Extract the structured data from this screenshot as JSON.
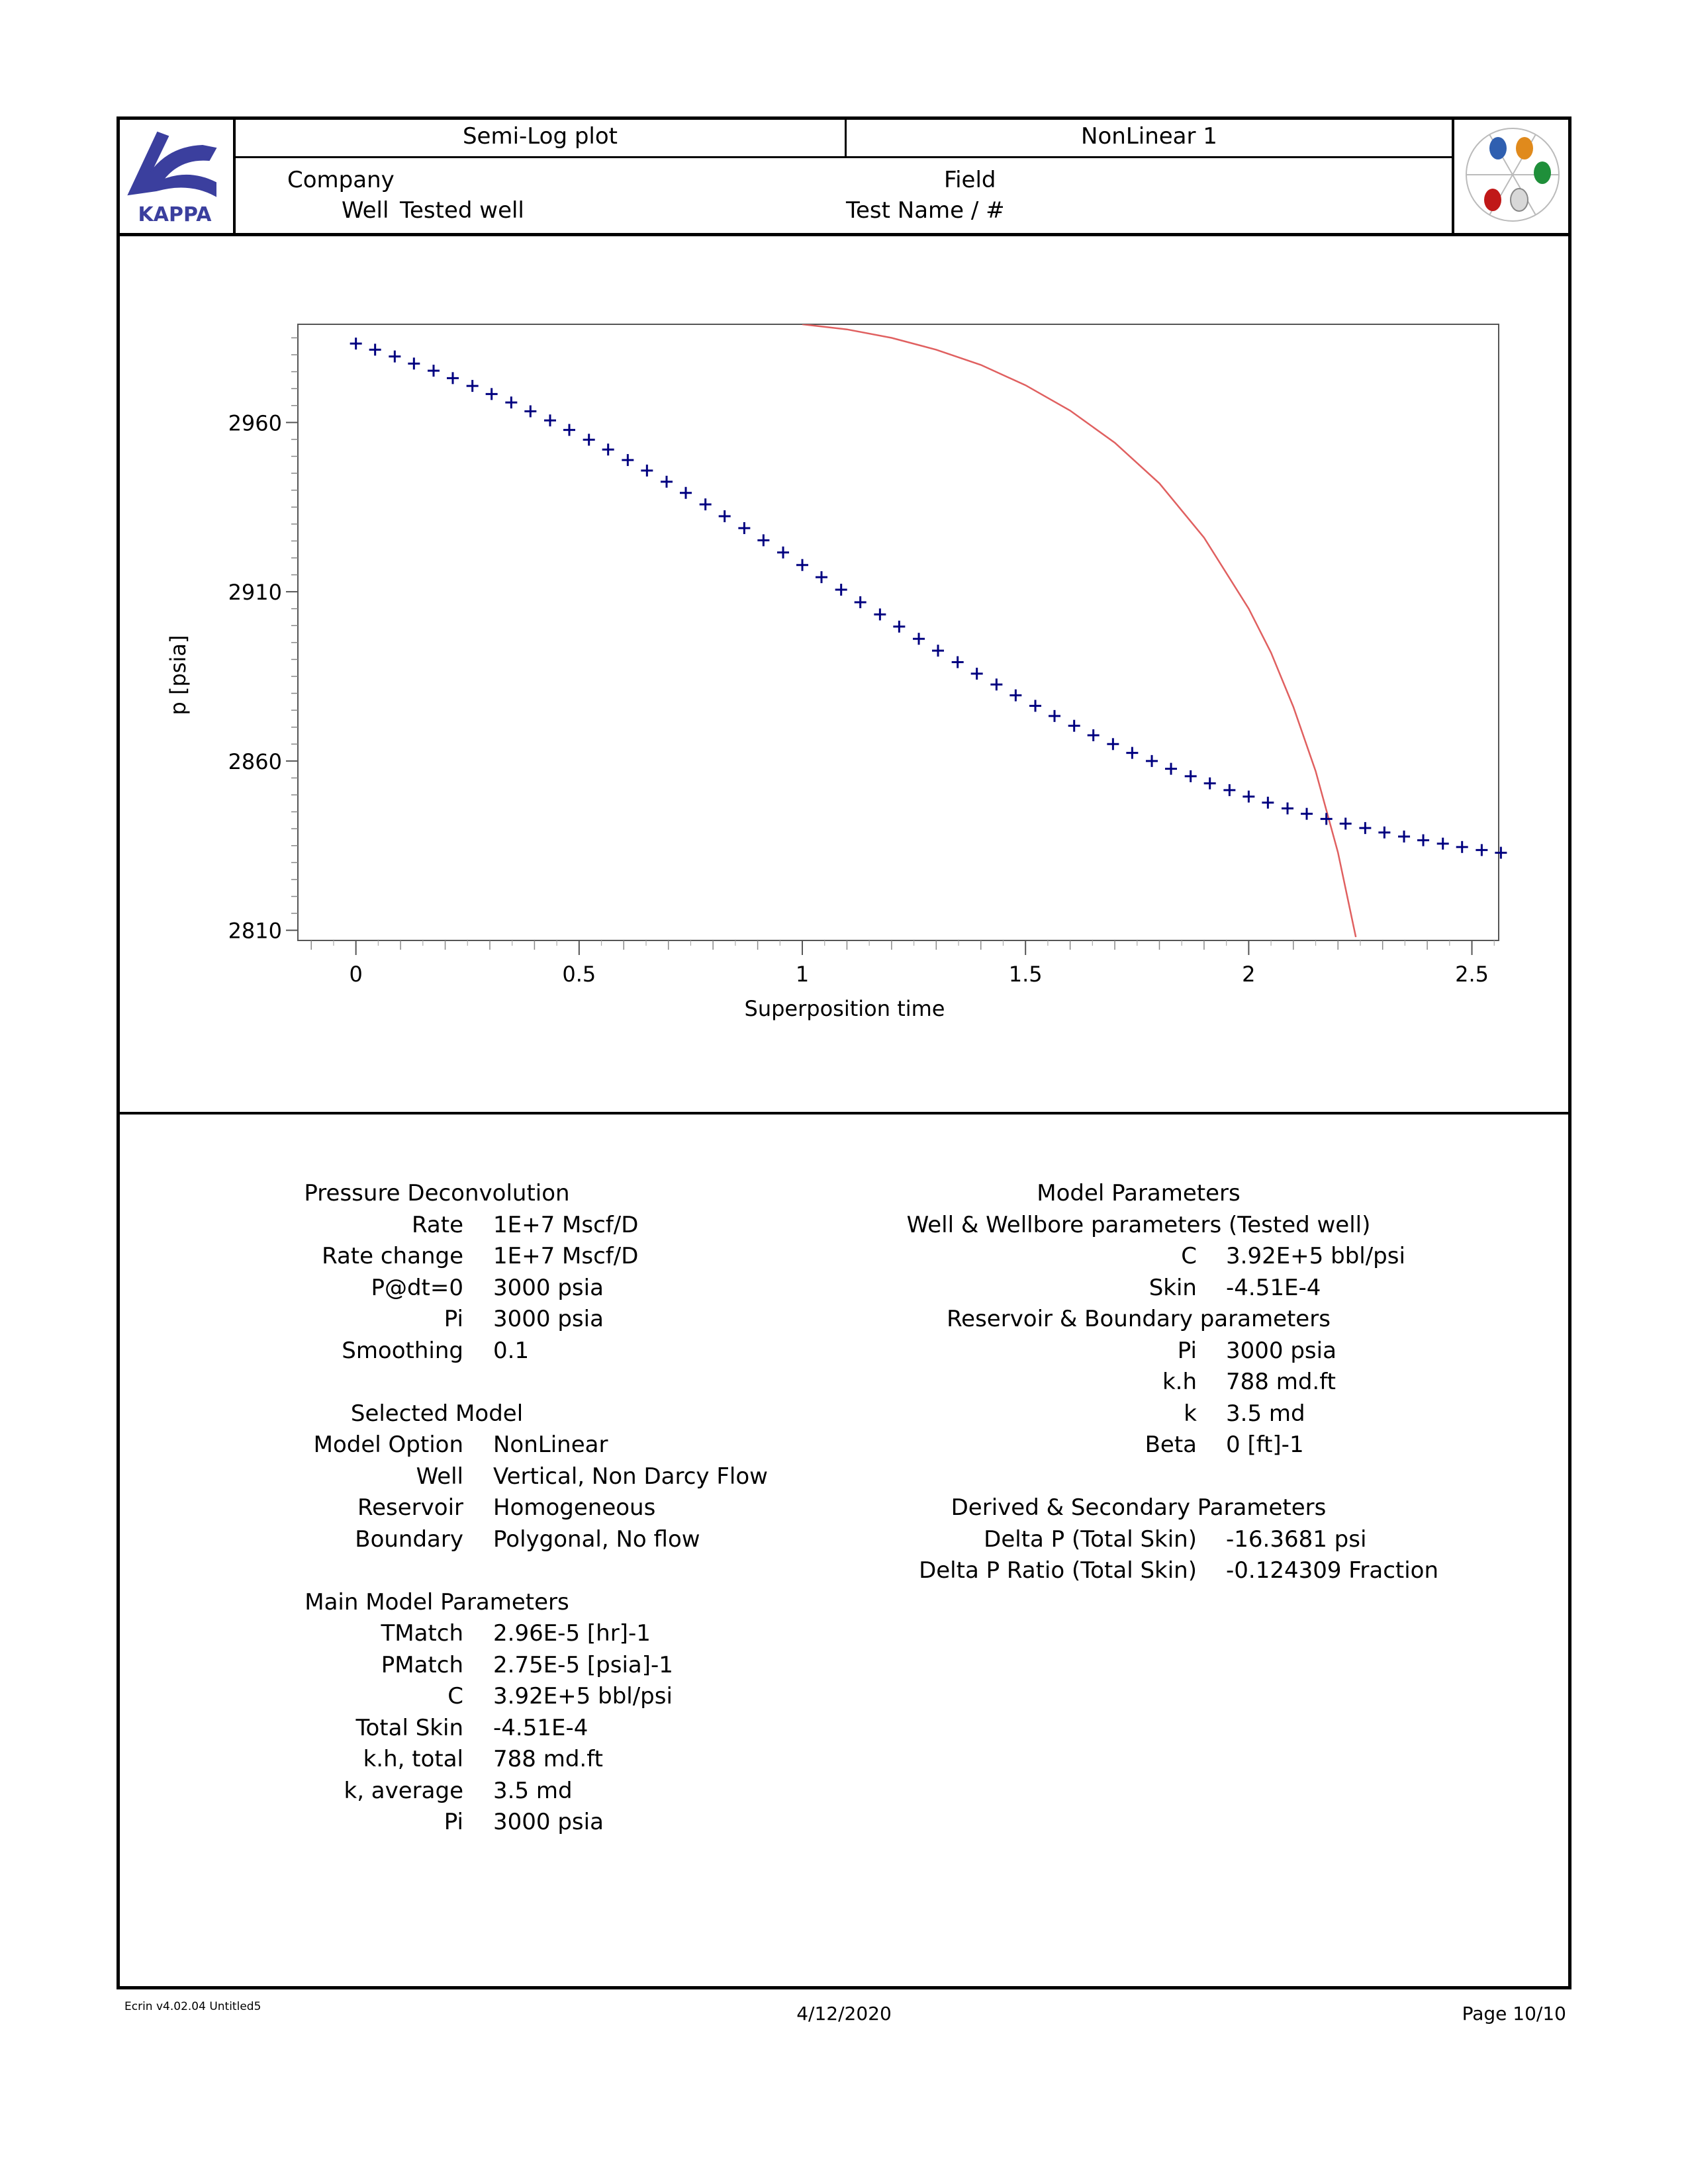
{
  "header": {
    "plot_title": "Semi-Log plot",
    "analysis_name": "NonLinear 1",
    "company_label": "Company",
    "field_label": "Field",
    "well_label": "Well",
    "well_value": "Tested well",
    "test_label": "Test Name / #",
    "logo_text": "KAPPA"
  },
  "chart_data": {
    "type": "scatter",
    "xlabel": "Superposition time",
    "ylabel": "p [psia]",
    "xlim": [
      -0.13,
      2.56
    ],
    "ylim": [
      2807,
      2989
    ],
    "x_ticks": [
      "0",
      "0.5",
      "1",
      "1.5",
      "2",
      "2.5"
    ],
    "y_ticks": [
      "2810",
      "2860",
      "2910",
      "2960"
    ],
    "series": [
      {
        "marker": "plus",
        "color": "#000080",
        "points": [
          [
            0.0,
            2983.3
          ],
          [
            0.043,
            2981.5
          ],
          [
            0.087,
            2979.5
          ],
          [
            0.13,
            2977.4
          ],
          [
            0.174,
            2975.3
          ],
          [
            0.217,
            2973.1
          ],
          [
            0.261,
            2970.8
          ],
          [
            0.304,
            2968.4
          ],
          [
            0.348,
            2965.9
          ],
          [
            0.391,
            2963.3
          ],
          [
            0.435,
            2960.6
          ],
          [
            0.478,
            2957.8
          ],
          [
            0.522,
            2954.9
          ],
          [
            0.565,
            2952.0
          ],
          [
            0.609,
            2948.9
          ],
          [
            0.652,
            2945.8
          ],
          [
            0.696,
            2942.5
          ],
          [
            0.739,
            2939.2
          ],
          [
            0.783,
            2935.8
          ],
          [
            0.826,
            2932.3
          ],
          [
            0.87,
            2928.8
          ],
          [
            0.913,
            2925.2
          ],
          [
            0.957,
            2921.6
          ],
          [
            1.0,
            2917.9
          ],
          [
            1.043,
            2914.3
          ],
          [
            1.087,
            2910.6
          ],
          [
            1.13,
            2906.9
          ],
          [
            1.174,
            2903.3
          ],
          [
            1.217,
            2899.7
          ],
          [
            1.261,
            2896.1
          ],
          [
            1.304,
            2892.6
          ],
          [
            1.348,
            2889.2
          ],
          [
            1.391,
            2885.8
          ],
          [
            1.435,
            2882.6
          ],
          [
            1.478,
            2879.4
          ],
          [
            1.522,
            2876.3
          ],
          [
            1.565,
            2873.3
          ],
          [
            1.609,
            2870.4
          ],
          [
            1.652,
            2867.6
          ],
          [
            1.696,
            2865.0
          ],
          [
            1.739,
            2862.4
          ],
          [
            1.783,
            2860.0
          ],
          [
            1.826,
            2857.7
          ],
          [
            1.87,
            2855.5
          ],
          [
            1.913,
            2853.4
          ],
          [
            1.957,
            2851.4
          ],
          [
            2.0,
            2849.5
          ],
          [
            2.043,
            2847.7
          ],
          [
            2.087,
            2846.0
          ],
          [
            2.13,
            2844.4
          ],
          [
            2.174,
            2842.9
          ],
          [
            2.217,
            2841.5
          ],
          [
            2.261,
            2840.2
          ],
          [
            2.304,
            2838.9
          ],
          [
            2.348,
            2837.7
          ],
          [
            2.391,
            2836.6
          ],
          [
            2.435,
            2835.6
          ],
          [
            2.478,
            2834.6
          ],
          [
            2.522,
            2833.7
          ],
          [
            2.565,
            2832.9
          ]
        ]
      },
      {
        "marker": "line",
        "color": "#e06060",
        "points": [
          [
            1.0,
            2989.0
          ],
          [
            1.1,
            2987.5
          ],
          [
            1.2,
            2985.0
          ],
          [
            1.3,
            2981.5
          ],
          [
            1.4,
            2977.0
          ],
          [
            1.5,
            2971.0
          ],
          [
            1.6,
            2963.5
          ],
          [
            1.7,
            2954.0
          ],
          [
            1.8,
            2942.0
          ],
          [
            1.9,
            2926.0
          ],
          [
            2.0,
            2905.0
          ],
          [
            2.05,
            2892.0
          ],
          [
            2.1,
            2876.0
          ],
          [
            2.15,
            2857.0
          ],
          [
            2.2,
            2833.0
          ],
          [
            2.24,
            2808.0
          ]
        ]
      }
    ]
  },
  "params_left": {
    "sections": [
      {
        "title": "Pressure Deconvolution",
        "rows": [
          {
            "label": "Rate",
            "value": "1E+7 Mscf/D"
          },
          {
            "label": "Rate change",
            "value": "1E+7 Mscf/D"
          },
          {
            "label": "P@dt=0",
            "value": "3000 psia"
          },
          {
            "label": "Pi",
            "value": "3000 psia"
          },
          {
            "label": "Smoothing",
            "value": "0.1"
          }
        ]
      },
      {
        "title": "Selected Model",
        "rows": [
          {
            "label": "Model Option",
            "value": "NonLinear"
          },
          {
            "label": "Well",
            "value": "Vertical, Non Darcy Flow"
          },
          {
            "label": "Reservoir",
            "value": "Homogeneous"
          },
          {
            "label": "Boundary",
            "value": "Polygonal, No flow"
          }
        ]
      },
      {
        "title": "Main Model Parameters",
        "rows": [
          {
            "label": "TMatch",
            "value": "2.96E-5 [hr]-1"
          },
          {
            "label": "PMatch",
            "value": "2.75E-5 [psia]-1"
          },
          {
            "label": "C",
            "value": "3.92E+5 bbl/psi"
          },
          {
            "label": "Total Skin",
            "value": "-4.51E-4"
          },
          {
            "label": "k.h, total",
            "value": "788 md.ft"
          },
          {
            "label": "k, average",
            "value": "3.5 md"
          },
          {
            "label": "Pi",
            "value": "3000 psia"
          }
        ]
      }
    ]
  },
  "params_right": {
    "title": "Model Parameters",
    "wellbore_title": "Well & Wellbore parameters (Tested well)",
    "wellbore_rows": [
      {
        "label": "C",
        "value": "3.92E+5 bbl/psi"
      },
      {
        "label": "Skin",
        "value": "-4.51E-4"
      }
    ],
    "reservoir_title": "Reservoir & Boundary parameters",
    "reservoir_rows": [
      {
        "label": "Pi",
        "value": "3000 psia"
      },
      {
        "label": "k.h",
        "value": "788 md.ft"
      },
      {
        "label": "k",
        "value": "3.5 md"
      },
      {
        "label": "Beta",
        "value": "0 [ft]-1"
      }
    ],
    "derived_title": "Derived & Secondary Parameters",
    "derived_rows": [
      {
        "label": "Delta P (Total Skin)",
        "value": "-16.3681 psi"
      },
      {
        "label": "Delta P Ratio (Total Skin)",
        "value": "-0.124309 Fraction"
      }
    ]
  },
  "footer": {
    "software": "Ecrin  v4.02.04 Untitled5",
    "date": "4/12/2020",
    "page": "Page 10/10"
  }
}
